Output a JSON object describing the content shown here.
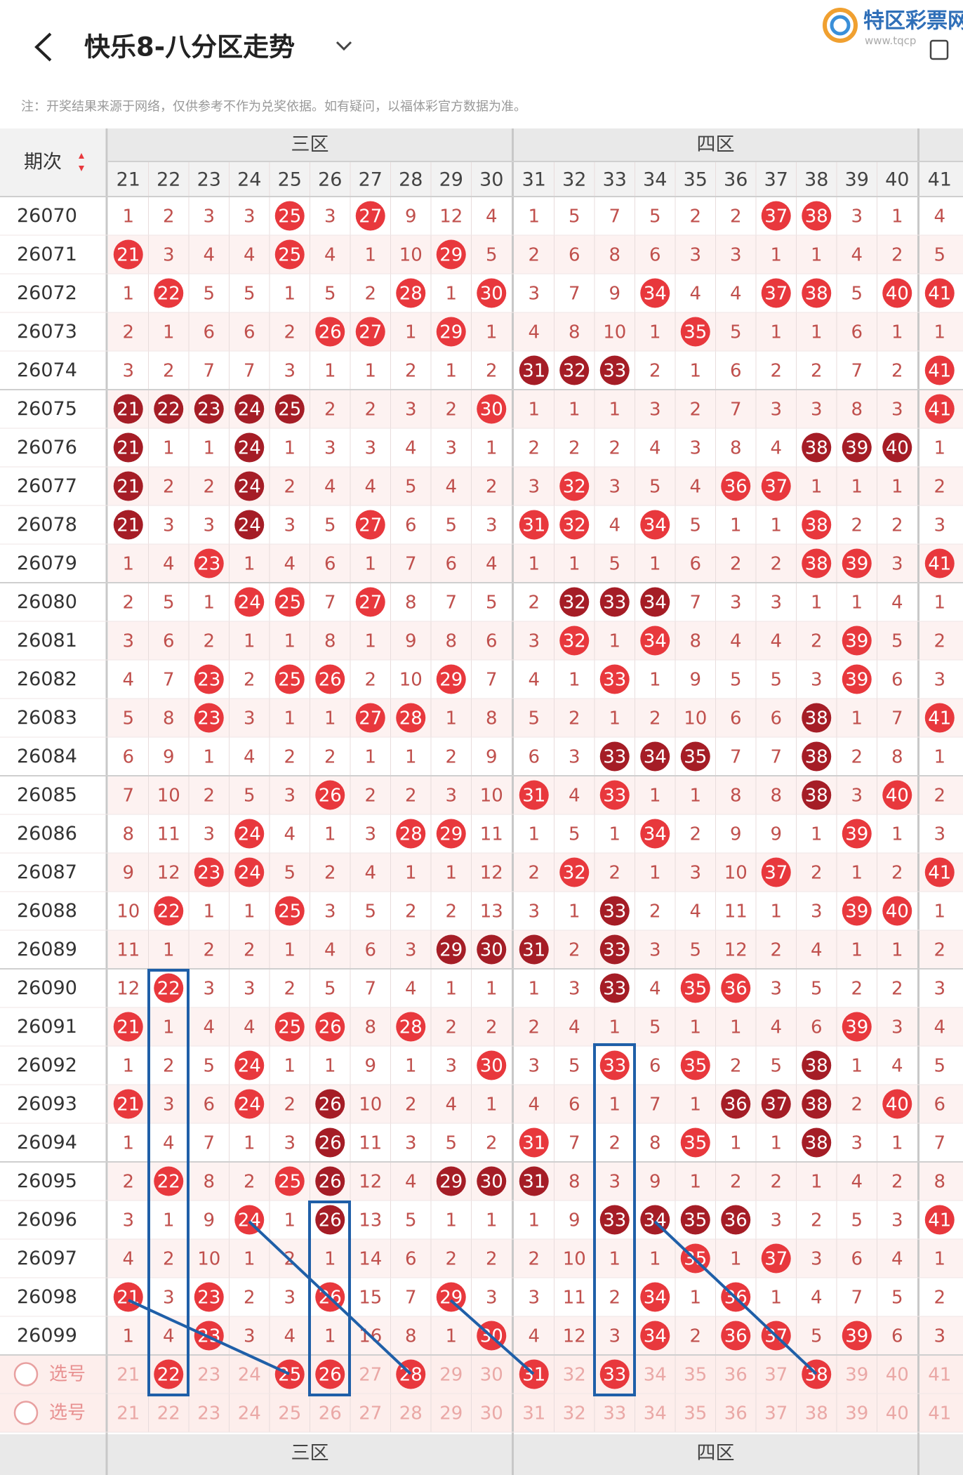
{
  "header": {
    "title": "快乐8-八分区走势",
    "notice": "注：开奖结果来源于网络，仅供参考不作为兑奖依据。如有疑问，以福体彩官方数据为准。"
  },
  "logo": {
    "name": "特区彩票网",
    "url": "www.tqcp"
  },
  "table": {
    "issue_label": "期次",
    "groups": [
      {
        "label": "三区"
      },
      {
        "label": "四区"
      }
    ],
    "columns": [
      21,
      22,
      23,
      24,
      25,
      26,
      27,
      28,
      29,
      30,
      31,
      32,
      33,
      34,
      35,
      36,
      37,
      38,
      39,
      40,
      41
    ],
    "rows": [
      {
        "issue": "26070",
        "values": [
          1,
          2,
          3,
          3,
          25,
          3,
          27,
          9,
          12,
          4,
          1,
          5,
          7,
          5,
          2,
          2,
          37,
          38,
          3,
          1,
          4
        ]
      },
      {
        "issue": "26071",
        "values": [
          21,
          3,
          4,
          4,
          25,
          4,
          1,
          10,
          29,
          5,
          2,
          6,
          8,
          6,
          3,
          3,
          1,
          1,
          4,
          2,
          5
        ]
      },
      {
        "issue": "26072",
        "values": [
          1,
          22,
          5,
          5,
          1,
          5,
          2,
          28,
          1,
          30,
          3,
          7,
          9,
          34,
          4,
          4,
          37,
          38,
          5,
          40,
          41
        ]
      },
      {
        "issue": "26073",
        "values": [
          2,
          1,
          6,
          6,
          2,
          26,
          27,
          1,
          29,
          1,
          4,
          8,
          10,
          1,
          35,
          5,
          1,
          1,
          6,
          1,
          1
        ]
      },
      {
        "issue": "26074",
        "values": [
          3,
          2,
          7,
          7,
          3,
          1,
          1,
          2,
          1,
          2,
          31,
          32,
          33,
          2,
          1,
          6,
          2,
          2,
          7,
          2,
          41
        ]
      },
      {
        "issue": "26075",
        "values": [
          21,
          22,
          23,
          24,
          25,
          2,
          2,
          3,
          2,
          30,
          1,
          1,
          1,
          3,
          2,
          7,
          3,
          3,
          8,
          3,
          41
        ]
      },
      {
        "issue": "26076",
        "values": [
          21,
          1,
          1,
          24,
          1,
          3,
          3,
          4,
          3,
          1,
          2,
          2,
          2,
          4,
          3,
          8,
          4,
          38,
          39,
          40,
          1
        ]
      },
      {
        "issue": "26077",
        "values": [
          21,
          2,
          2,
          24,
          2,
          4,
          4,
          5,
          4,
          2,
          3,
          32,
          3,
          5,
          4,
          36,
          37,
          1,
          1,
          1,
          2
        ]
      },
      {
        "issue": "26078",
        "values": [
          21,
          3,
          3,
          24,
          3,
          5,
          27,
          6,
          5,
          3,
          31,
          32,
          4,
          34,
          5,
          1,
          1,
          38,
          2,
          2,
          3
        ]
      },
      {
        "issue": "26079",
        "values": [
          1,
          4,
          23,
          1,
          4,
          6,
          1,
          7,
          6,
          4,
          1,
          1,
          5,
          1,
          6,
          2,
          2,
          38,
          39,
          3,
          41
        ]
      },
      {
        "issue": "26080",
        "values": [
          2,
          5,
          1,
          24,
          25,
          7,
          27,
          8,
          7,
          5,
          2,
          32,
          33,
          34,
          7,
          3,
          3,
          1,
          1,
          4,
          1
        ]
      },
      {
        "issue": "26081",
        "values": [
          3,
          6,
          2,
          1,
          1,
          8,
          1,
          9,
          8,
          6,
          3,
          32,
          1,
          34,
          8,
          4,
          4,
          2,
          39,
          5,
          2
        ]
      },
      {
        "issue": "26082",
        "values": [
          4,
          7,
          23,
          2,
          25,
          26,
          2,
          10,
          29,
          7,
          4,
          1,
          33,
          1,
          9,
          5,
          5,
          3,
          39,
          6,
          3
        ]
      },
      {
        "issue": "26083",
        "values": [
          5,
          8,
          23,
          3,
          1,
          1,
          27,
          28,
          1,
          8,
          5,
          2,
          1,
          2,
          10,
          6,
          6,
          38,
          1,
          7,
          41
        ]
      },
      {
        "issue": "26084",
        "values": [
          6,
          9,
          1,
          4,
          2,
          2,
          1,
          1,
          2,
          9,
          6,
          3,
          33,
          34,
          35,
          7,
          7,
          38,
          2,
          8,
          1
        ]
      },
      {
        "issue": "26085",
        "values": [
          7,
          10,
          2,
          5,
          3,
          26,
          2,
          2,
          3,
          10,
          31,
          4,
          33,
          1,
          1,
          8,
          8,
          38,
          3,
          40,
          2
        ]
      },
      {
        "issue": "26086",
        "values": [
          8,
          11,
          3,
          24,
          4,
          1,
          3,
          28,
          29,
          11,
          1,
          5,
          1,
          34,
          2,
          9,
          9,
          1,
          39,
          1,
          3
        ]
      },
      {
        "issue": "26087",
        "values": [
          9,
          12,
          23,
          24,
          5,
          2,
          4,
          1,
          1,
          12,
          2,
          32,
          2,
          1,
          3,
          10,
          37,
          2,
          1,
          2,
          41
        ]
      },
      {
        "issue": "26088",
        "values": [
          10,
          22,
          1,
          1,
          25,
          3,
          5,
          2,
          2,
          13,
          3,
          1,
          33,
          2,
          4,
          11,
          1,
          3,
          39,
          40,
          1
        ]
      },
      {
        "issue": "26089",
        "values": [
          11,
          1,
          2,
          2,
          1,
          4,
          6,
          3,
          29,
          30,
          31,
          2,
          33,
          3,
          5,
          12,
          2,
          4,
          1,
          1,
          2
        ]
      },
      {
        "issue": "26090",
        "values": [
          12,
          22,
          3,
          3,
          2,
          5,
          7,
          4,
          1,
          1,
          1,
          3,
          33,
          4,
          35,
          36,
          3,
          5,
          2,
          2,
          3
        ]
      },
      {
        "issue": "26091",
        "values": [
          21,
          1,
          4,
          4,
          25,
          26,
          8,
          28,
          2,
          2,
          2,
          4,
          1,
          5,
          1,
          1,
          4,
          6,
          39,
          3,
          4
        ]
      },
      {
        "issue": "26092",
        "values": [
          1,
          2,
          5,
          24,
          1,
          1,
          9,
          1,
          3,
          30,
          3,
          5,
          33,
          6,
          35,
          2,
          5,
          38,
          1,
          4,
          5
        ]
      },
      {
        "issue": "26093",
        "values": [
          21,
          3,
          6,
          24,
          2,
          26,
          10,
          2,
          4,
          1,
          4,
          6,
          1,
          7,
          1,
          36,
          37,
          38,
          2,
          40,
          6
        ]
      },
      {
        "issue": "26094",
        "values": [
          1,
          4,
          7,
          1,
          3,
          26,
          11,
          3,
          5,
          2,
          31,
          7,
          2,
          8,
          35,
          1,
          1,
          38,
          3,
          1,
          7
        ]
      },
      {
        "issue": "26095",
        "values": [
          2,
          22,
          8,
          2,
          25,
          26,
          12,
          4,
          29,
          30,
          31,
          8,
          3,
          9,
          1,
          2,
          2,
          1,
          4,
          2,
          8
        ]
      },
      {
        "issue": "26096",
        "values": [
          3,
          1,
          9,
          24,
          1,
          26,
          13,
          5,
          1,
          1,
          1,
          9,
          33,
          34,
          35,
          36,
          3,
          2,
          5,
          3,
          41
        ]
      },
      {
        "issue": "26097",
        "values": [
          4,
          2,
          10,
          1,
          2,
          1,
          14,
          6,
          2,
          2,
          2,
          10,
          1,
          1,
          35,
          1,
          37,
          3,
          6,
          4,
          1
        ]
      },
      {
        "issue": "26098",
        "values": [
          21,
          3,
          23,
          2,
          3,
          26,
          15,
          7,
          29,
          3,
          3,
          11,
          2,
          34,
          1,
          36,
          1,
          4,
          7,
          5,
          2
        ]
      },
      {
        "issue": "26099",
        "values": [
          1,
          4,
          23,
          3,
          4,
          1,
          16,
          8,
          1,
          30,
          4,
          12,
          3,
          34,
          2,
          36,
          37,
          5,
          39,
          6,
          3
        ]
      }
    ],
    "pick_label": "选号",
    "picks": [
      [
        22,
        25,
        26,
        28,
        31,
        33,
        38
      ],
      []
    ]
  }
}
